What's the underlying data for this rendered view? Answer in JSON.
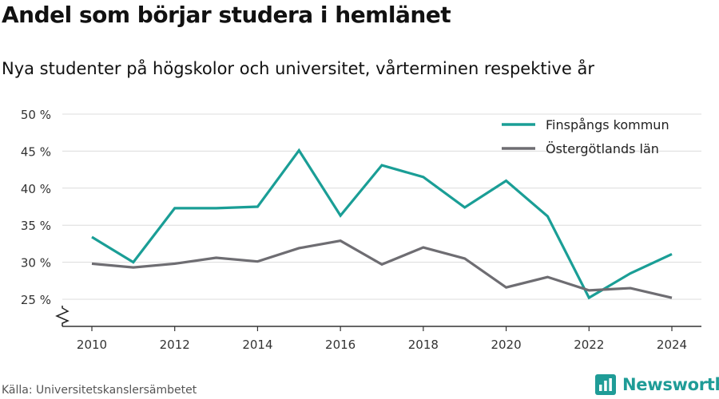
{
  "title": "Andel som börjar studera i hemlänet",
  "subtitle": "Nya studenter på högskolor och universitet, vårterminen respektive år",
  "source": "Källa: Universitetskanslersämbetet",
  "brand": {
    "name": "Newsworthy",
    "color": "#1f9c97"
  },
  "chart_data": {
    "type": "line",
    "x": [
      2010,
      2011,
      2012,
      2013,
      2014,
      2015,
      2016,
      2017,
      2018,
      2019,
      2020,
      2021,
      2022,
      2023,
      2024
    ],
    "series": [
      {
        "name": "Finspångs kommun",
        "color": "#1a9e96",
        "values": [
          33.4,
          30.0,
          37.3,
          37.3,
          37.5,
          45.1,
          36.3,
          43.1,
          41.5,
          37.4,
          41.0,
          36.2,
          25.2,
          28.5,
          31.1
        ]
      },
      {
        "name": "Östergötlands län",
        "color": "#6e6d72",
        "values": [
          29.8,
          29.3,
          29.8,
          30.6,
          30.1,
          31.9,
          32.9,
          29.7,
          32.0,
          30.5,
          26.6,
          28.0,
          26.2,
          26.5,
          25.2
        ]
      }
    ],
    "ylim": [
      22,
      50
    ],
    "yticks": [
      25,
      30,
      35,
      40,
      45,
      50
    ],
    "ytick_labels": [
      "25 %",
      "30 %",
      "35 %",
      "40 %",
      "45 %",
      "50 %"
    ],
    "xticks": [
      2010,
      2012,
      2014,
      2016,
      2018,
      2020,
      2022,
      2024
    ],
    "xtick_labels": [
      "2010",
      "2012",
      "2014",
      "2016",
      "2018",
      "2020",
      "2022",
      "2024"
    ],
    "xlim": [
      2009.3,
      2024.7
    ],
    "grid": true,
    "legend_position": "top-right",
    "axis_break": true
  }
}
